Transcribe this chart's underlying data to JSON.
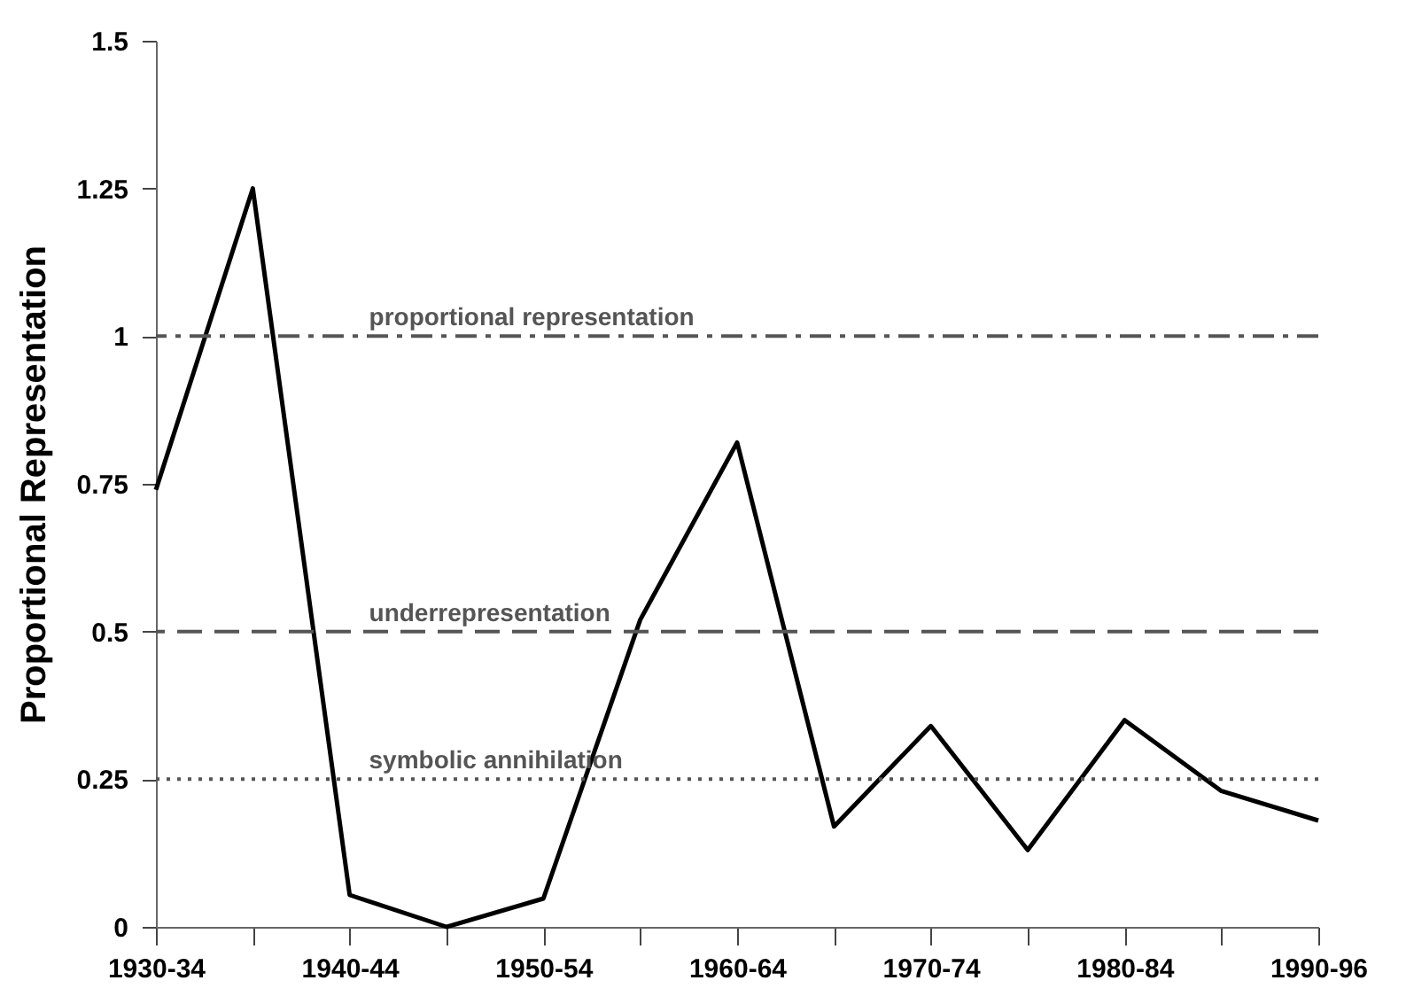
{
  "chart_data": {
    "type": "line",
    "ylabel": "Proportional Representation",
    "categories": [
      "1930-34",
      null,
      "1940-44",
      null,
      "1950-54",
      null,
      "1960-64",
      null,
      "1970-74",
      null,
      "1980-84",
      null,
      "1990-96"
    ],
    "series": [
      {
        "color": "#000000",
        "values": [
          0.74,
          1.25,
          0.054,
          0,
          0.048,
          0.52,
          0.82,
          0.17,
          0.34,
          0.13,
          0.35,
          0.23,
          0.18
        ]
      }
    ],
    "ylim": [
      0,
      1.5
    ],
    "yticks": [
      0,
      0.25,
      0.5,
      0.75,
      1,
      1.25,
      1.5
    ],
    "ref_lines": [
      {
        "axis": "y",
        "value": 1,
        "label": "proportional representation",
        "color": "#555555",
        "line_style": "dashdot"
      },
      {
        "axis": "y",
        "value": 0.5,
        "label": "underrepresentation",
        "color": "#555555",
        "line_style": "dashed"
      },
      {
        "axis": "y",
        "value": 0.25,
        "label": "symbolic annihilation",
        "color": "#555555",
        "line_style": "dotted"
      }
    ],
    "grid": false,
    "marker": "none",
    "line_style": "solid"
  }
}
